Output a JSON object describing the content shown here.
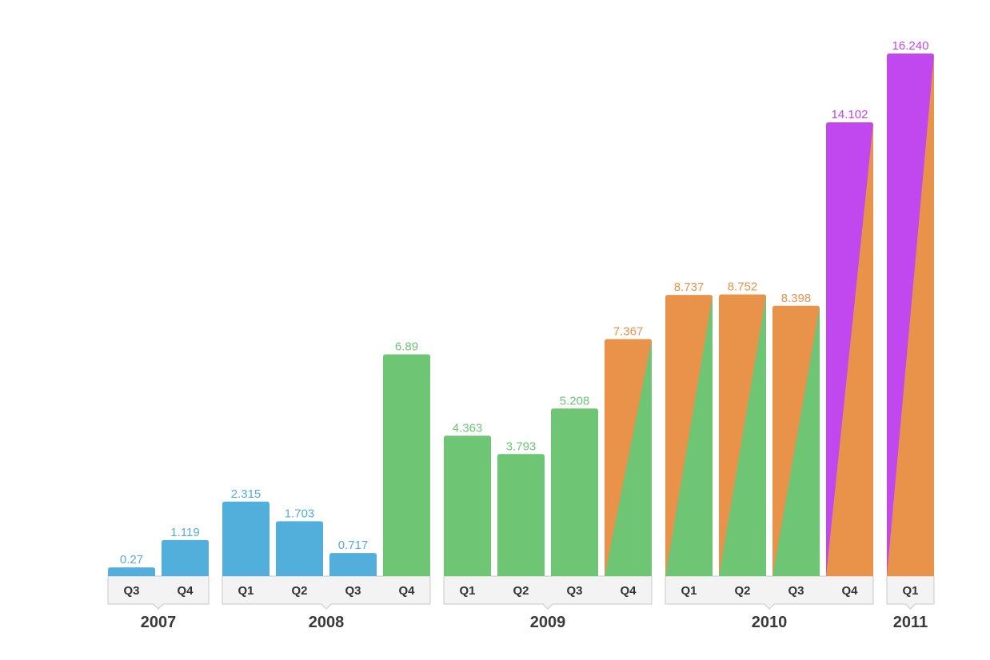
{
  "chart_data": {
    "type": "bar",
    "title": "",
    "xlabel": "",
    "ylabel": "",
    "ylim": [
      0,
      16.24
    ],
    "grid": false,
    "legend": "none",
    "colors": {
      "blue": "#52aedb",
      "green": "#6ec574",
      "orange": "#e8924a",
      "purple": "#c147ee",
      "label_text": "#333333",
      "tab_fill": "#f3f3f3",
      "tab_border": "#c8c8c8"
    },
    "year_groups": [
      {
        "year": "2007",
        "bars": [
          {
            "quarter": "Q3",
            "value": 0.27,
            "label": "0.27",
            "color": "blue"
          },
          {
            "quarter": "Q4",
            "value": 1.119,
            "label": "1.119",
            "color": "blue"
          }
        ]
      },
      {
        "year": "2008",
        "bars": [
          {
            "quarter": "Q1",
            "value": 2.315,
            "label": "2.315",
            "color": "blue"
          },
          {
            "quarter": "Q2",
            "value": 1.703,
            "label": "1.703",
            "color": "blue"
          },
          {
            "quarter": "Q3",
            "value": 0.717,
            "label": "0.717",
            "color": "blue"
          },
          {
            "quarter": "Q4",
            "value": 6.89,
            "label": "6.89",
            "color": "green"
          }
        ]
      },
      {
        "year": "2009",
        "bars": [
          {
            "quarter": "Q1",
            "value": 4.363,
            "label": "4.363",
            "color": "green"
          },
          {
            "quarter": "Q2",
            "value": 3.793,
            "label": "3.793",
            "color": "green"
          },
          {
            "quarter": "Q3",
            "value": 5.208,
            "label": "5.208",
            "color": "green"
          },
          {
            "quarter": "Q4",
            "value": 7.367,
            "label": "7.367",
            "color": "orange",
            "transition_from": "green"
          }
        ]
      },
      {
        "year": "2010",
        "bars": [
          {
            "quarter": "Q1",
            "value": 8.737,
            "label": "8.737",
            "color": "orange",
            "transition_from": "green"
          },
          {
            "quarter": "Q2",
            "value": 8.752,
            "label": "8.752",
            "color": "orange",
            "transition_from": "green"
          },
          {
            "quarter": "Q3",
            "value": 8.398,
            "label": "8.398",
            "color": "orange",
            "transition_from": "green"
          },
          {
            "quarter": "Q4",
            "value": 14.102,
            "label": "14.102",
            "color": "purple",
            "transition_from": "orange"
          }
        ]
      },
      {
        "year": "2011",
        "bars": [
          {
            "quarter": "Q1",
            "value": 16.24,
            "label": "16.240",
            "color": "purple",
            "transition_from": "orange"
          }
        ]
      }
    ]
  }
}
